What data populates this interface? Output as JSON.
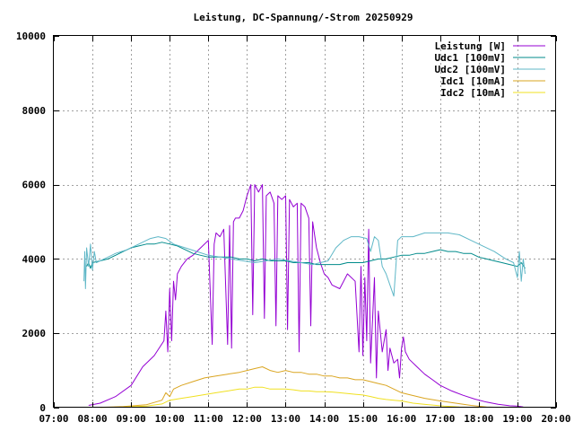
{
  "chart_data": {
    "type": "line",
    "title": "Leistung, DC-Spannung/-Strom 20250929",
    "xlabel": "",
    "ylabel": "",
    "x_unit": "hours",
    "xlim": [
      7,
      20
    ],
    "ylim": [
      0,
      10000
    ],
    "grid": true,
    "legend_position": "top-right",
    "x_ticks": [
      {
        "value": 7,
        "label": "07:00"
      },
      {
        "value": 8,
        "label": "08:00"
      },
      {
        "value": 9,
        "label": "09:00"
      },
      {
        "value": 10,
        "label": "10:00"
      },
      {
        "value": 11,
        "label": "11:00"
      },
      {
        "value": 12,
        "label": "12:00"
      },
      {
        "value": 13,
        "label": "13:00"
      },
      {
        "value": 14,
        "label": "14:00"
      },
      {
        "value": 15,
        "label": "15:00"
      },
      {
        "value": 16,
        "label": "16:00"
      },
      {
        "value": 17,
        "label": "17:00"
      },
      {
        "value": 18,
        "label": "18:00"
      },
      {
        "value": 19,
        "label": "19:00"
      },
      {
        "value": 20,
        "label": "20:00"
      }
    ],
    "y_ticks": [
      {
        "value": 0,
        "label": "0"
      },
      {
        "value": 2000,
        "label": "2000"
      },
      {
        "value": 4000,
        "label": "4000"
      },
      {
        "value": 6000,
        "label": "6000"
      },
      {
        "value": 8000,
        "label": "8000"
      },
      {
        "value": 10000,
        "label": "10000"
      }
    ],
    "series": [
      {
        "name": "Leistung [W]",
        "color": "#9400d3",
        "x": [
          7.9,
          8.2,
          8.6,
          9.0,
          9.3,
          9.6,
          9.85,
          9.9,
          9.95,
          10.0,
          10.05,
          10.1,
          10.15,
          10.2,
          10.3,
          10.45,
          10.6,
          10.8,
          11.0,
          11.1,
          11.15,
          11.2,
          11.3,
          11.4,
          11.5,
          11.55,
          11.6,
          11.65,
          11.7,
          11.8,
          11.9,
          12.0,
          12.1,
          12.15,
          12.2,
          12.3,
          12.4,
          12.45,
          12.5,
          12.6,
          12.7,
          12.75,
          12.8,
          12.9,
          13.0,
          13.05,
          13.1,
          13.2,
          13.3,
          13.35,
          13.4,
          13.5,
          13.6,
          13.65,
          13.7,
          13.8,
          13.9,
          14.0,
          14.1,
          14.2,
          14.4,
          14.6,
          14.8,
          14.9,
          14.95,
          15.0,
          15.05,
          15.1,
          15.15,
          15.2,
          15.3,
          15.35,
          15.4,
          15.5,
          15.6,
          15.65,
          15.7,
          15.8,
          15.9,
          15.95,
          16.0,
          16.05,
          16.1,
          16.2,
          16.4,
          16.6,
          16.8,
          17.0,
          17.3,
          17.6,
          17.9,
          18.2,
          18.5,
          18.8,
          19.0,
          19.15
        ],
        "values": [
          60,
          120,
          300,
          600,
          1100,
          1400,
          1800,
          2600,
          1500,
          3200,
          1800,
          3400,
          2900,
          3600,
          3800,
          4000,
          4100,
          4300,
          4500,
          1700,
          4400,
          4700,
          4600,
          4800,
          1700,
          4900,
          1600,
          5000,
          5100,
          5100,
          5300,
          5700,
          6000,
          2500,
          6000,
          5800,
          6000,
          2400,
          5700,
          5800,
          5500,
          2200,
          5700,
          5600,
          5700,
          2100,
          5600,
          5400,
          5500,
          1500,
          5500,
          5400,
          5100,
          2200,
          5000,
          4300,
          3900,
          3600,
          3500,
          3300,
          3200,
          3600,
          3400,
          1500,
          3800,
          1400,
          3500,
          1800,
          4800,
          1200,
          3500,
          800,
          2600,
          1500,
          2100,
          1000,
          1600,
          1200,
          1300,
          800,
          1600,
          1900,
          1500,
          1300,
          1100,
          900,
          750,
          600,
          450,
          330,
          230,
          150,
          90,
          50,
          40,
          20
        ]
      },
      {
        "name": "Udc1 [100mV]",
        "color": "#008b8b",
        "x": [
          7.85,
          7.9,
          7.95,
          8.0,
          8.2,
          8.4,
          8.6,
          8.8,
          9.0,
          9.2,
          9.4,
          9.6,
          9.8,
          10.0,
          10.2,
          10.4,
          10.6,
          10.8,
          11.0,
          11.2,
          11.4,
          11.6,
          11.8,
          12.0,
          12.2,
          12.4,
          12.6,
          12.8,
          13.0,
          13.2,
          13.4,
          13.6,
          13.8,
          14.0,
          14.2,
          14.4,
          14.6,
          14.8,
          15.0,
          15.2,
          15.4,
          15.6,
          15.8,
          16.0,
          16.2,
          16.4,
          16.6,
          16.8,
          17.0,
          17.2,
          17.4,
          17.6,
          17.8,
          18.0,
          18.2,
          18.4,
          18.6,
          18.8,
          19.0,
          19.1,
          19.2
        ],
        "values": [
          3800,
          3900,
          3750,
          3900,
          3950,
          4000,
          4100,
          4200,
          4300,
          4350,
          4400,
          4400,
          4450,
          4400,
          4350,
          4250,
          4150,
          4100,
          4050,
          4050,
          4050,
          4050,
          4000,
          4000,
          3950,
          4000,
          3950,
          3950,
          3950,
          3900,
          3900,
          3900,
          3850,
          3850,
          3850,
          3850,
          3900,
          3900,
          3900,
          3950,
          4000,
          4000,
          4050,
          4100,
          4100,
          4150,
          4150,
          4200,
          4250,
          4200,
          4200,
          4150,
          4150,
          4050,
          4000,
          3950,
          3900,
          3850,
          3800,
          3900,
          3750
        ]
      },
      {
        "name": "Udc2 [100mV]",
        "color": "#5fb7c7",
        "x": [
          7.78,
          7.8,
          7.82,
          7.85,
          7.9,
          7.95,
          8.0,
          8.05,
          8.1,
          8.3,
          8.6,
          8.9,
          9.2,
          9.5,
          9.7,
          9.9,
          10.1,
          10.4,
          10.7,
          11.0,
          11.3,
          11.6,
          11.9,
          12.2,
          12.5,
          12.8,
          13.1,
          13.4,
          13.7,
          13.9,
          14.1,
          14.3,
          14.5,
          14.7,
          14.9,
          15.1,
          15.2,
          15.3,
          15.4,
          15.5,
          15.6,
          15.7,
          15.8,
          15.9,
          16.0,
          16.3,
          16.6,
          16.9,
          17.2,
          17.5,
          17.8,
          18.1,
          18.4,
          18.7,
          18.9,
          19.0,
          19.05,
          19.1,
          19.15,
          19.2
        ],
        "values": [
          3400,
          4200,
          3200,
          4300,
          3800,
          4400,
          3700,
          4200,
          3900,
          4000,
          4150,
          4250,
          4400,
          4550,
          4600,
          4550,
          4400,
          4300,
          4200,
          4100,
          4050,
          4000,
          3950,
          3900,
          3950,
          4000,
          3950,
          3900,
          3850,
          3900,
          3950,
          4300,
          4500,
          4600,
          4600,
          4550,
          4200,
          4600,
          4500,
          3800,
          3600,
          3300,
          3000,
          4500,
          4600,
          4600,
          4700,
          4700,
          4700,
          4650,
          4500,
          4350,
          4200,
          4000,
          3900,
          3500,
          4200,
          3400,
          4000,
          3600
        ]
      },
      {
        "name": "Idc1 [10mA]",
        "color": "#daa520",
        "x": [
          8.2,
          8.8,
          9.4,
          9.8,
          9.9,
          10.0,
          10.1,
          10.3,
          10.6,
          10.9,
          11.2,
          11.5,
          11.8,
          12.0,
          12.2,
          12.4,
          12.6,
          12.8,
          13.0,
          13.2,
          13.4,
          13.6,
          13.8,
          14.0,
          14.2,
          14.4,
          14.6,
          14.8,
          15.0,
          15.2,
          15.4,
          15.6,
          15.8,
          16.0,
          16.2,
          16.6,
          17.0,
          17.4,
          17.8,
          18.2,
          18.5
        ],
        "values": [
          10,
          30,
          80,
          200,
          400,
          300,
          500,
          600,
          700,
          800,
          850,
          900,
          950,
          1000,
          1050,
          1100,
          1000,
          950,
          1000,
          950,
          950,
          900,
          900,
          850,
          850,
          800,
          800,
          750,
          750,
          700,
          650,
          600,
          500,
          400,
          350,
          250,
          180,
          120,
          60,
          20,
          10
        ]
      },
      {
        "name": "Idc2 [10mA]",
        "color": "#f0e020",
        "x": [
          8.2,
          8.8,
          9.4,
          9.8,
          10.0,
          10.3,
          10.6,
          10.9,
          11.2,
          11.5,
          11.8,
          12.0,
          12.2,
          12.4,
          12.6,
          12.8,
          13.0,
          13.2,
          13.4,
          13.6,
          13.8,
          14.0,
          14.2,
          14.4,
          14.6,
          14.8,
          15.0,
          15.2,
          15.4,
          15.6,
          15.8,
          16.0,
          16.3,
          16.7,
          17.1,
          17.5,
          18.0
        ],
        "values": [
          5,
          15,
          40,
          100,
          200,
          250,
          300,
          350,
          400,
          450,
          500,
          500,
          550,
          550,
          500,
          500,
          500,
          480,
          450,
          450,
          430,
          430,
          420,
          400,
          380,
          360,
          340,
          300,
          250,
          220,
          200,
          180,
          120,
          80,
          40,
          20,
          5
        ]
      }
    ]
  }
}
